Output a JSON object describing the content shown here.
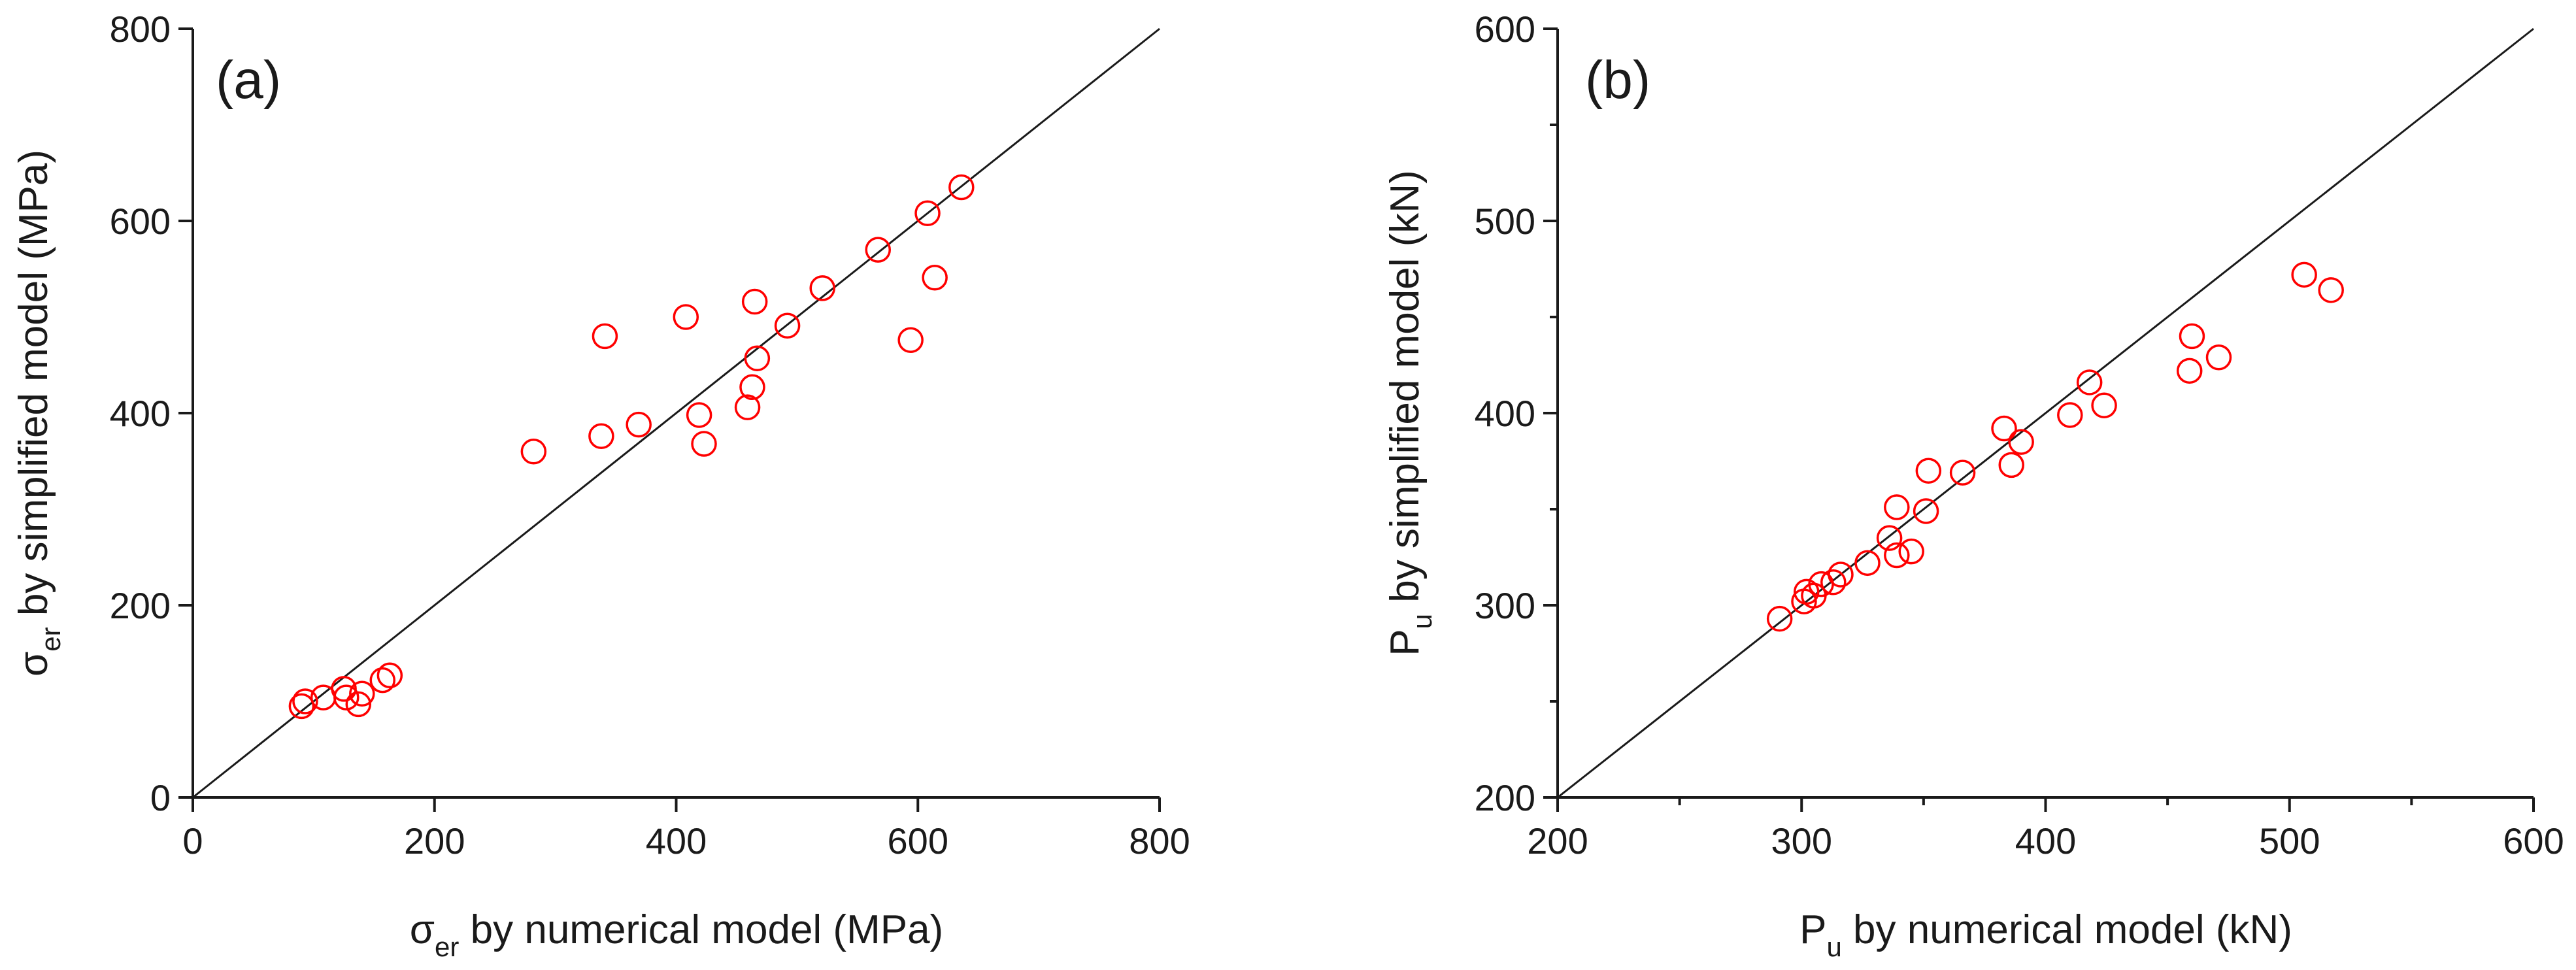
{
  "chart_data": [
    {
      "type": "scatter",
      "panel_label": "(a)",
      "xlim": [
        0,
        800
      ],
      "ylim": [
        0,
        800
      ],
      "xticks": [
        0,
        200,
        400,
        600,
        800
      ],
      "yticks": [
        0,
        200,
        400,
        600,
        800
      ],
      "xlabel": {
        "symbol": "σ",
        "subscript": "er",
        "rest": " by numerical model (MPa)"
      },
      "ylabel": {
        "symbol": "σ",
        "subscript": "er",
        "rest": " by simplified model (MPa)"
      },
      "reference_line": "y = x",
      "marker": "open circle",
      "marker_color": "#ff0000",
      "points": [
        [
          90,
          95
        ],
        [
          93,
          100
        ],
        [
          108,
          104
        ],
        [
          125,
          113
        ],
        [
          127,
          104
        ],
        [
          137,
          97
        ],
        [
          140,
          108
        ],
        [
          157,
          122
        ],
        [
          163,
          127
        ],
        [
          282,
          360
        ],
        [
          338,
          376
        ],
        [
          341,
          480
        ],
        [
          369,
          388
        ],
        [
          408,
          500
        ],
        [
          419,
          398
        ],
        [
          423,
          368
        ],
        [
          459,
          406
        ],
        [
          463,
          427
        ],
        [
          465,
          516
        ],
        [
          467,
          457
        ],
        [
          492,
          491
        ],
        [
          521,
          530
        ],
        [
          567,
          570
        ],
        [
          594,
          476
        ],
        [
          608,
          608
        ],
        [
          614,
          541
        ],
        [
          636,
          635
        ]
      ]
    },
    {
      "type": "scatter",
      "panel_label": "(b)",
      "xlim": [
        200,
        600
      ],
      "ylim": [
        200,
        600
      ],
      "xticks": [
        200,
        300,
        400,
        500,
        600
      ],
      "xminor": [
        250,
        350,
        450,
        550
      ],
      "yticks": [
        200,
        300,
        400,
        500,
        600
      ],
      "yminor": [
        250,
        350,
        450,
        550
      ],
      "xlabel": {
        "symbol": "P",
        "subscript": "u",
        "rest": " by numerical model (kN)"
      },
      "ylabel": {
        "symbol": "P",
        "subscript": "u",
        "rest": " by simplified model (kN)"
      },
      "reference_line": "y = x",
      "marker": "open circle",
      "marker_color": "#ff0000",
      "points": [
        [
          291,
          293
        ],
        [
          301,
          302
        ],
        [
          302,
          307
        ],
        [
          305,
          305
        ],
        [
          308,
          311
        ],
        [
          313,
          312
        ],
        [
          316,
          316
        ],
        [
          327,
          322
        ],
        [
          336,
          335
        ],
        [
          339,
          326
        ],
        [
          339,
          351
        ],
        [
          345,
          328
        ],
        [
          351,
          349
        ],
        [
          352,
          370
        ],
        [
          366,
          369
        ],
        [
          383,
          392
        ],
        [
          386,
          373
        ],
        [
          390,
          385
        ],
        [
          410,
          399
        ],
        [
          418,
          416
        ],
        [
          424,
          404
        ],
        [
          459,
          422
        ],
        [
          460,
          440
        ],
        [
          471,
          429
        ],
        [
          506,
          472
        ],
        [
          517,
          464
        ]
      ]
    }
  ]
}
